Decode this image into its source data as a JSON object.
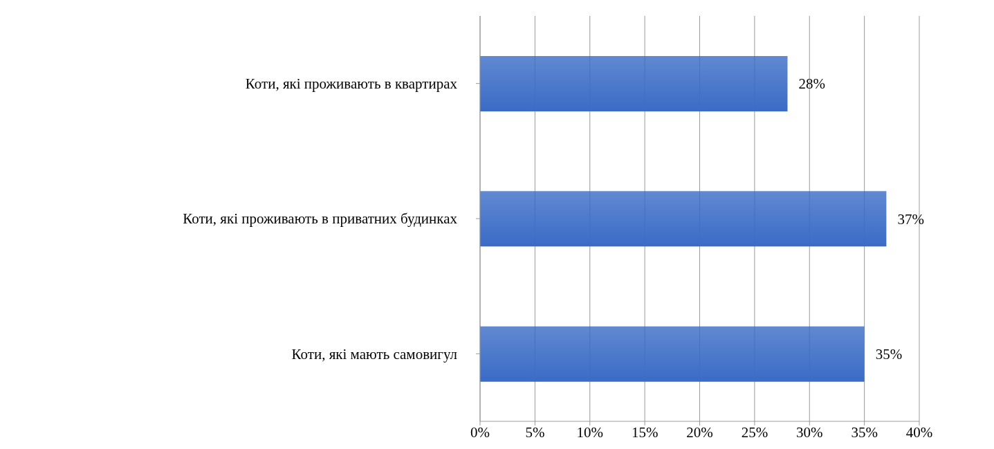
{
  "chart_data": {
    "type": "bar",
    "orientation": "horizontal",
    "categories": [
      "Коти, які проживають в квартирах",
      "Коти, які проживають в приватних будинках",
      "Коти, які мають самовигул"
    ],
    "values": [
      28,
      37,
      35
    ],
    "value_labels": [
      "28%",
      "37%",
      "35%"
    ],
    "color": "#3a6bc6",
    "xlim": [
      0,
      40
    ],
    "xticks": [
      {
        "value": 0,
        "label": "0%"
      },
      {
        "value": 5,
        "label": "5%"
      },
      {
        "value": 10,
        "label": "10%"
      },
      {
        "value": 15,
        "label": "15%"
      },
      {
        "value": 20,
        "label": "20%"
      },
      {
        "value": 25,
        "label": "25%"
      },
      {
        "value": 30,
        "label": "30%"
      },
      {
        "value": 35,
        "label": "35%"
      },
      {
        "value": 40,
        "label": "40%"
      }
    ],
    "grid": "x",
    "legend": false
  }
}
